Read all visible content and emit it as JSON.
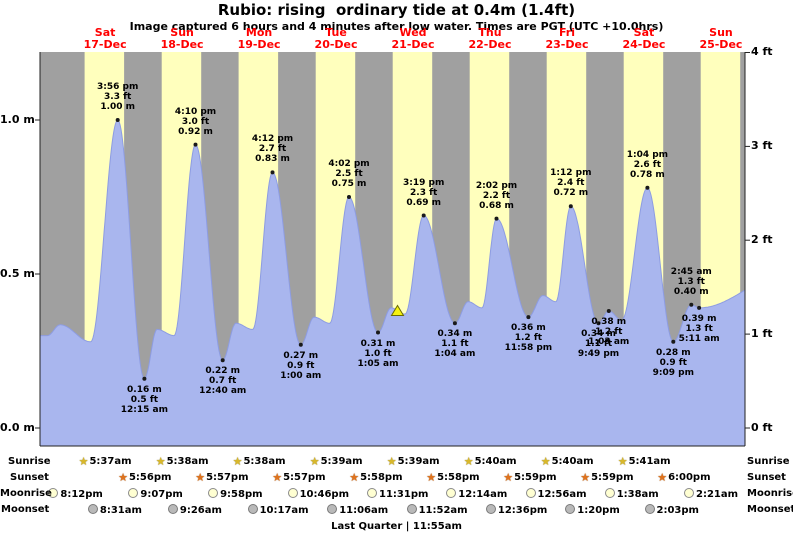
{
  "header": {
    "title": "Rubio: rising  ordinary tide at 0.4m (1.4ft)",
    "subtitle": "Image captured 6 hours and 4 minutes after low water. Times are PGT (UTC +10.0hrs)"
  },
  "chart_data": {
    "type": "area",
    "title": "Rubio: rising  ordinary tide at 0.4m (1.4ft)",
    "ylabel_left": "meters",
    "ylabel_right": "feet",
    "ylim_m": [
      -0.06,
      1.28
    ],
    "time_axis": {
      "start_h": -8.3,
      "end_h": 211.5,
      "days": [
        {
          "dow": "Sat",
          "date": "17-Dec"
        },
        {
          "dow": "Sun",
          "date": "18-Dec"
        },
        {
          "dow": "Mon",
          "date": "19-Dec"
        },
        {
          "dow": "Tue",
          "date": "20-Dec"
        },
        {
          "dow": "Wed",
          "date": "21-Dec"
        },
        {
          "dow": "Thu",
          "date": "22-Dec"
        },
        {
          "dow": "Fri",
          "date": "23-Dec"
        },
        {
          "dow": "Sat",
          "date": "24-Dec"
        },
        {
          "dow": "Sun",
          "date": "25-Dec"
        }
      ]
    },
    "y_axis_left": {
      "unit": "m",
      "ticks": [
        {
          "label": "0.0 m",
          "m": 0.0
        },
        {
          "label": "0.5 m",
          "m": 0.5
        },
        {
          "label": "1.0 m",
          "m": 1.0
        }
      ]
    },
    "y_axis_right": {
      "unit": "ft",
      "ticks": [
        {
          "label": "0 ft",
          "m": 0.0
        },
        {
          "label": "1 ft",
          "m": 0.3048
        },
        {
          "label": "2 ft",
          "m": 0.6096
        },
        {
          "label": "3 ft",
          "m": 0.9144
        },
        {
          "label": "4 ft",
          "m": 1.2192
        }
      ]
    },
    "daylight_bands": [
      {
        "sunrise_h": 5.617,
        "sunset_h": 17.933
      },
      {
        "sunrise_h": 29.633,
        "sunset_h": 41.95
      },
      {
        "sunrise_h": 53.633,
        "sunset_h": 65.95
      },
      {
        "sunrise_h": 77.65,
        "sunset_h": 89.967
      },
      {
        "sunrise_h": 101.65,
        "sunset_h": 113.967
      },
      {
        "sunrise_h": 125.667,
        "sunset_h": 137.983
      },
      {
        "sunrise_h": 149.667,
        "sunset_h": 161.983
      },
      {
        "sunrise_h": 173.683,
        "sunset_h": 186.0
      },
      {
        "sunrise_h": 197.7,
        "sunset_h": 210.0
      }
    ],
    "tide_events": [
      {
        "t": -6.0,
        "m": 0.3,
        "est": true
      },
      {
        "t": -2.0,
        "m": 0.335,
        "est": true
      },
      {
        "t": 7.5,
        "m": 0.28,
        "est": true
      },
      {
        "t": 15.933,
        "m": 1.0,
        "label": {
          "pos": "above",
          "lines": [
            "3:56 pm",
            "3.3 ft",
            "1.00 m"
          ]
        }
      },
      {
        "t": 24.25,
        "m": 0.16,
        "label": {
          "pos": "below",
          "lines": [
            "0.16 m",
            "0.5 ft",
            "12:15 am"
          ]
        }
      },
      {
        "t": 28.2,
        "m": 0.32,
        "est": true
      },
      {
        "t": 33.5,
        "m": 0.3,
        "est": true
      },
      {
        "t": 40.167,
        "m": 0.92,
        "label": {
          "pos": "above",
          "lines": [
            "4:10 pm",
            "3.0 ft",
            "0.92 m"
          ]
        }
      },
      {
        "t": 48.667,
        "m": 0.22,
        "label": {
          "pos": "below",
          "lines": [
            "0.22 m",
            "0.7 ft",
            "12:40 am"
          ]
        }
      },
      {
        "t": 52.8,
        "m": 0.34,
        "est": true
      },
      {
        "t": 58.0,
        "m": 0.32,
        "est": true
      },
      {
        "t": 64.2,
        "m": 0.83,
        "label": {
          "pos": "above",
          "lines": [
            "4:12 pm",
            "2.7 ft",
            "0.83 m"
          ]
        }
      },
      {
        "t": 73.0,
        "m": 0.27,
        "label": {
          "pos": "below",
          "lines": [
            "0.27 m",
            "0.9 ft",
            "1:00 am"
          ]
        }
      },
      {
        "t": 77.2,
        "m": 0.36,
        "est": true
      },
      {
        "t": 82.0,
        "m": 0.34,
        "est": true
      },
      {
        "t": 88.033,
        "m": 0.75,
        "label": {
          "pos": "above",
          "lines": [
            "4:02 pm",
            "2.5 ft",
            "0.75 m"
          ]
        }
      },
      {
        "t": 97.083,
        "m": 0.31,
        "label": {
          "pos": "below",
          "lines": [
            "0.31 m",
            "1.0 ft",
            "1:05 am"
          ]
        }
      },
      {
        "t": 101.2,
        "m": 0.39,
        "est": true
      },
      {
        "t": 105.5,
        "m": 0.37,
        "est": true
      },
      {
        "t": 111.317,
        "m": 0.69,
        "label": {
          "pos": "above",
          "lines": [
            "3:19 pm",
            "2.3 ft",
            "0.69 m"
          ]
        }
      },
      {
        "t": 121.067,
        "m": 0.34,
        "label": {
          "pos": "below",
          "lines": [
            "0.34 m",
            "1.1 ft",
            "1:04 am"
          ]
        }
      },
      {
        "t": 125.2,
        "m": 0.41,
        "est": true
      },
      {
        "t": 129.5,
        "m": 0.39,
        "est": true
      },
      {
        "t": 134.033,
        "m": 0.68,
        "label": {
          "pos": "above",
          "lines": [
            "2:02 pm",
            "2.2 ft",
            "0.68 m"
          ]
        }
      },
      {
        "t": 143.967,
        "m": 0.36,
        "label": {
          "pos": "below",
          "lines": [
            "0.36 m",
            "1.2 ft",
            "11:58 pm"
          ]
        }
      },
      {
        "t": 148.5,
        "m": 0.43,
        "est": true
      },
      {
        "t": 152.5,
        "m": 0.41,
        "est": true
      },
      {
        "t": 157.2,
        "m": 0.72,
        "label": {
          "pos": "above",
          "lines": [
            "1:12 pm",
            "2.4 ft",
            "0.72 m"
          ]
        }
      },
      {
        "t": 165.817,
        "m": 0.34,
        "label": {
          "pos": "below",
          "lines": [
            "0.34 m",
            "1.1 ft",
            "9:49 pm"
          ]
        }
      },
      {
        "t": 169.05,
        "m": 0.38,
        "label": {
          "pos": "below",
          "lines": [
            "0.38 m",
            "1.2 ft",
            "1:03 am"
          ]
        }
      },
      {
        "t": 173.0,
        "m": 0.35,
        "est": true
      },
      {
        "t": 181.067,
        "m": 0.78,
        "label": {
          "pos": "above",
          "lines": [
            "1:04 pm",
            "2.6 ft",
            "0.78 m"
          ]
        }
      },
      {
        "t": 189.15,
        "m": 0.28,
        "label": {
          "pos": "below",
          "lines": [
            "0.28 m",
            "0.9 ft",
            "9:09 pm"
          ]
        }
      },
      {
        "t": 194.75,
        "m": 0.4,
        "label": {
          "pos": "above",
          "lines": [
            "2:45 am",
            "1.3 ft",
            "0.40 m"
          ]
        }
      },
      {
        "t": 197.183,
        "m": 0.39,
        "label": {
          "pos": "below",
          "lines": [
            "0.39 m",
            "1.3 ft",
            "5:11 am"
          ]
        }
      },
      {
        "t": 225.0,
        "m": 0.5,
        "est": true
      }
    ],
    "marker": {
      "t": 103.15,
      "symbol": "triangle",
      "color": "#f6f210"
    },
    "colors": {
      "day": "#ffffbd",
      "night": "#a0a0a0",
      "tide": "#a9b6ee",
      "tide_edge": "#8d9ce2",
      "date_label": "#ff0000",
      "axis": "#222222"
    }
  },
  "astro": {
    "rows": [
      {
        "name": "Sunrise",
        "icon": "sunrise-star-icon",
        "entries": [
          {
            "time": "5:37am",
            "t": 5.617
          },
          {
            "time": "5:38am",
            "t": 29.633
          },
          {
            "time": "5:38am",
            "t": 53.633
          },
          {
            "time": "5:39am",
            "t": 77.65
          },
          {
            "time": "5:39am",
            "t": 101.65
          },
          {
            "time": "5:40am",
            "t": 125.667
          },
          {
            "time": "5:40am",
            "t": 149.667
          },
          {
            "time": "5:41am",
            "t": 173.683
          }
        ]
      },
      {
        "name": "Sunset",
        "icon": "sunset-star-icon",
        "entries": [
          {
            "time": "5:56pm",
            "t": 17.933
          },
          {
            "time": "5:57pm",
            "t": 41.95
          },
          {
            "time": "5:57pm",
            "t": 65.95
          },
          {
            "time": "5:58pm",
            "t": 89.967
          },
          {
            "time": "5:58pm",
            "t": 113.967
          },
          {
            "time": "5:59pm",
            "t": 137.983
          },
          {
            "time": "5:59pm",
            "t": 161.983
          },
          {
            "time": "6:00pm",
            "t": 186.0
          }
        ]
      },
      {
        "name": "Moonrise",
        "icon": "moonrise-icon",
        "entries": [
          {
            "time": "8:12pm",
            "t": -3.8
          },
          {
            "time": "9:07pm",
            "t": 21.117
          },
          {
            "time": "9:58pm",
            "t": 45.967
          },
          {
            "time": "10:46pm",
            "t": 70.767
          },
          {
            "time": "11:31pm",
            "t": 95.517
          },
          {
            "time": "12:14am",
            "t": 120.233
          },
          {
            "time": "12:56am",
            "t": 144.933
          },
          {
            "time": "1:38am",
            "t": 169.633
          },
          {
            "time": "2:21am",
            "t": 194.35
          }
        ]
      },
      {
        "name": "Moonset",
        "icon": "moonset-icon",
        "entries": [
          {
            "time": "8:31am",
            "t": 8.517
          },
          {
            "time": "9:26am",
            "t": 33.433
          },
          {
            "time": "10:17am",
            "t": 58.283
          },
          {
            "time": "11:06am",
            "t": 83.1
          },
          {
            "time": "11:52am",
            "t": 107.867
          },
          {
            "time": "12:36pm",
            "t": 132.6
          },
          {
            "time": "1:20pm",
            "t": 157.333
          },
          {
            "time": "2:03pm",
            "t": 182.05
          }
        ]
      }
    ],
    "footer": "Last Quarter | 11:55am"
  }
}
